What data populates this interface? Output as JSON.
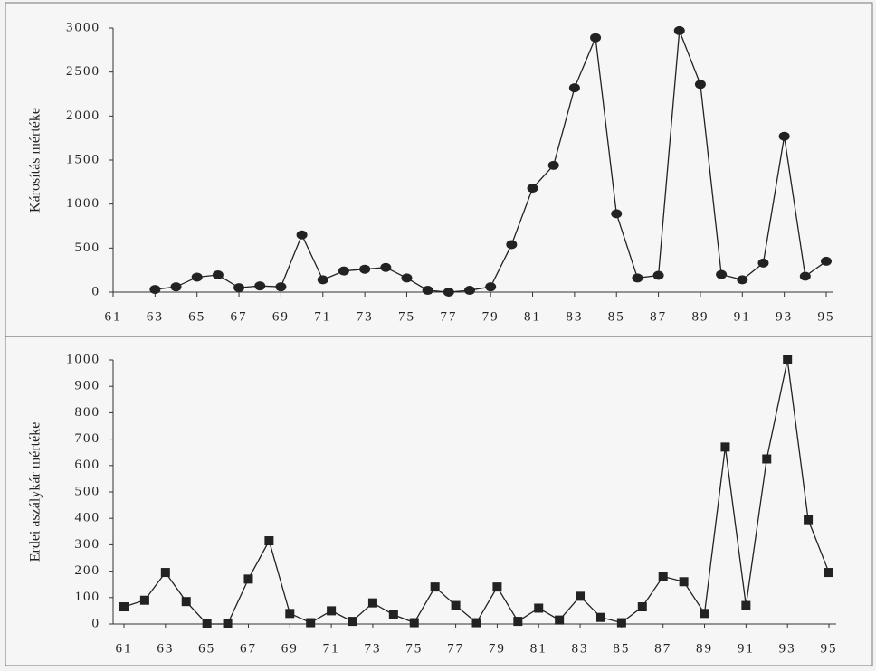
{
  "chart_data": [
    {
      "type": "line",
      "ylabel": "Károsítás mértéke",
      "marker": "circle",
      "color": "#222222",
      "x": [
        63,
        64,
        65,
        66,
        67,
        68,
        69,
        70,
        71,
        72,
        73,
        74,
        75,
        76,
        77,
        78,
        79,
        80,
        81,
        82,
        83,
        84,
        85,
        86,
        87,
        88,
        89,
        90,
        91,
        92,
        93,
        94,
        95
      ],
      "values": [
        30,
        60,
        170,
        195,
        50,
        70,
        60,
        650,
        140,
        240,
        260,
        280,
        160,
        20,
        0,
        20,
        60,
        540,
        1180,
        1440,
        2320,
        2890,
        890,
        160,
        190,
        2970,
        2360,
        200,
        140,
        330,
        1770,
        180,
        350
      ],
      "xlim": [
        61,
        95
      ],
      "xticks": [
        61,
        63,
        65,
        67,
        69,
        71,
        73,
        75,
        77,
        79,
        81,
        83,
        85,
        87,
        89,
        91,
        93,
        95
      ],
      "ylim": [
        0,
        3000
      ],
      "yticks": [
        0,
        500,
        1000,
        1500,
        2000,
        2500,
        3000
      ]
    },
    {
      "type": "line",
      "ylabel": "Erdei aszálykár mértéke",
      "marker": "square",
      "color": "#222222",
      "x": [
        61,
        62,
        63,
        64,
        65,
        66,
        67,
        68,
        69,
        70,
        71,
        72,
        73,
        74,
        75,
        76,
        77,
        78,
        79,
        80,
        81,
        82,
        83,
        84,
        85,
        86,
        87,
        88,
        89,
        90,
        91,
        92,
        93,
        94,
        95
      ],
      "values": [
        65,
        90,
        195,
        85,
        0,
        0,
        170,
        315,
        40,
        5,
        50,
        10,
        80,
        35,
        5,
        140,
        70,
        5,
        140,
        10,
        60,
        15,
        105,
        25,
        5,
        65,
        180,
        160,
        40,
        670,
        70,
        625,
        1000,
        395,
        195
      ],
      "xlim": [
        61,
        95
      ],
      "xticks": [
        61,
        63,
        65,
        67,
        69,
        71,
        73,
        75,
        77,
        79,
        81,
        83,
        85,
        87,
        89,
        91,
        93,
        95
      ],
      "ylim": [
        0,
        1000
      ],
      "yticks": [
        0,
        100,
        200,
        300,
        400,
        500,
        600,
        700,
        800,
        900,
        1000
      ]
    }
  ]
}
